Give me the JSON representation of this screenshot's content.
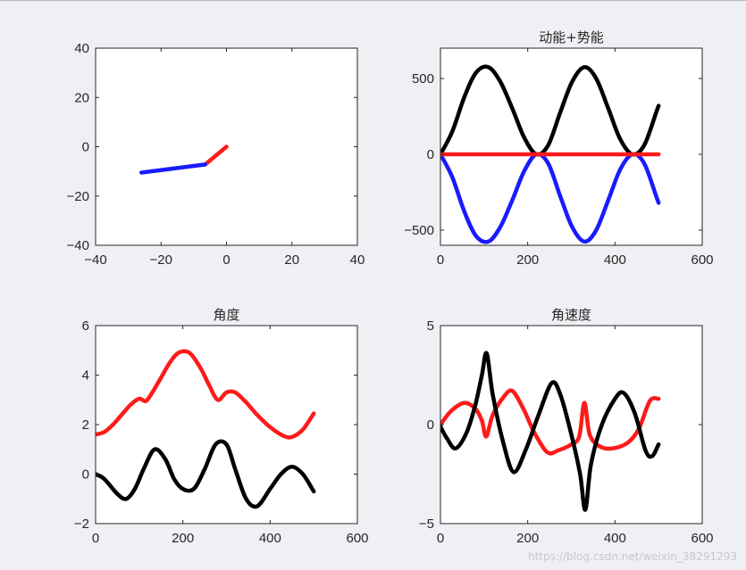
{
  "figure": {
    "background": "#f0eff4",
    "axes_background": "#ffffff",
    "axis_color": "#262626"
  },
  "watermark": "https://blog.csdn.net/weixin_38291293",
  "chart_data": [
    {
      "type": "line",
      "title": "",
      "xlim": [
        -40,
        40
      ],
      "ylim": [
        -40,
        40
      ],
      "xticks": [
        -40,
        -20,
        0,
        20,
        40
      ],
      "yticks": [
        -40,
        -20,
        0,
        20,
        40
      ],
      "series": [
        {
          "color": "#ff1a1a",
          "points": [
            [
              0,
              0
            ],
            [
              -6.5,
              -7.2
            ]
          ]
        },
        {
          "color": "#1a1aff",
          "points": [
            [
              -6.5,
              -7.2
            ],
            [
              -26,
              -10.5
            ]
          ]
        }
      ]
    },
    {
      "type": "line",
      "title": "动能+势能",
      "xlim": [
        0,
        600
      ],
      "ylim": [
        -600,
        700
      ],
      "xticks": [
        0,
        200,
        400,
        600
      ],
      "yticks": [
        -500,
        0,
        500
      ],
      "series": [
        {
          "color": "#000000",
          "x": [
            0,
            27,
            55,
            82,
            110,
            137,
            165,
            192,
            220,
            247,
            275,
            302,
            330,
            357,
            385,
            412,
            440,
            467,
            495,
            500
          ],
          "y": [
            0,
            150,
            380,
            540,
            575,
            480,
            300,
            110,
            0,
            60,
            280,
            480,
            575,
            500,
            300,
            100,
            0,
            60,
            280,
            320
          ]
        },
        {
          "color": "#1a1aff",
          "x": [
            0,
            27,
            55,
            82,
            110,
            137,
            165,
            192,
            220,
            247,
            275,
            302,
            330,
            357,
            385,
            412,
            440,
            467,
            495,
            500
          ],
          "y": [
            0,
            -150,
            -380,
            -540,
            -575,
            -480,
            -300,
            -110,
            0,
            -60,
            -280,
            -480,
            -575,
            -500,
            -300,
            -100,
            0,
            -60,
            -280,
            -320
          ]
        },
        {
          "color": "#ff1a1a",
          "x": [
            0,
            500
          ],
          "y": [
            0,
            0
          ]
        }
      ]
    },
    {
      "type": "line",
      "title": "角度",
      "xlim": [
        0,
        600
      ],
      "ylim": [
        -2,
        6
      ],
      "xticks": [
        0,
        200,
        400,
        600
      ],
      "yticks": [
        -2,
        0,
        2,
        4,
        6
      ],
      "series": [
        {
          "color": "#ff1a1a",
          "x": [
            0,
            20,
            40,
            60,
            80,
            100,
            115,
            130,
            150,
            170,
            190,
            215,
            240,
            260,
            280,
            300,
            320,
            345,
            370,
            400,
            430,
            450,
            475,
            500
          ],
          "y": [
            1.6,
            1.7,
            2.0,
            2.4,
            2.8,
            3.05,
            2.95,
            3.3,
            3.9,
            4.5,
            4.9,
            4.9,
            4.3,
            3.6,
            3.0,
            3.3,
            3.3,
            2.9,
            2.4,
            1.9,
            1.55,
            1.5,
            1.8,
            2.45
          ]
        },
        {
          "color": "#000000",
          "x": [
            0,
            20,
            50,
            70,
            90,
            110,
            135,
            160,
            180,
            200,
            225,
            250,
            275,
            300,
            320,
            345,
            370,
            400,
            425,
            450,
            475,
            500
          ],
          "y": [
            0.0,
            -0.2,
            -0.8,
            -1.0,
            -0.6,
            0.2,
            1.0,
            0.6,
            -0.2,
            -0.6,
            -0.6,
            0.2,
            1.2,
            1.2,
            0.2,
            -1.0,
            -1.3,
            -0.6,
            0.0,
            0.3,
            0.0,
            -0.7
          ]
        }
      ]
    },
    {
      "type": "line",
      "title": "角速度",
      "xlim": [
        0,
        600
      ],
      "ylim": [
        -5,
        5
      ],
      "xticks": [
        0,
        200,
        400,
        600
      ],
      "yticks": [
        -5,
        0,
        5
      ],
      "series": [
        {
          "color": "#ff1a1a",
          "x": [
            0,
            25,
            55,
            80,
            95,
            105,
            120,
            145,
            165,
            190,
            215,
            245,
            270,
            300,
            318,
            330,
            342,
            365,
            395,
            430,
            455,
            480,
            500
          ],
          "y": [
            0,
            0.7,
            1.1,
            0.8,
            0.2,
            -0.6,
            0.5,
            1.4,
            1.7,
            0.8,
            -0.4,
            -1.4,
            -1.3,
            -1.0,
            -0.6,
            1.1,
            -0.5,
            -1.1,
            -1.2,
            -0.9,
            -0.2,
            1.2,
            1.3
          ]
        },
        {
          "color": "#000000",
          "x": [
            0,
            15,
            35,
            60,
            80,
            95,
            106,
            120,
            145,
            168,
            195,
            225,
            255,
            275,
            300,
            320,
            332,
            345,
            370,
            400,
            420,
            445,
            470,
            485,
            500
          ],
          "y": [
            -0.1,
            -0.7,
            -1.2,
            -0.4,
            1.0,
            2.5,
            3.6,
            1.5,
            -1.0,
            -2.4,
            -1.3,
            0.5,
            2.1,
            1.5,
            -0.5,
            -2.5,
            -4.3,
            -2.0,
            0.0,
            1.3,
            1.6,
            0.6,
            -1.3,
            -1.6,
            -1.0
          ]
        }
      ]
    }
  ]
}
